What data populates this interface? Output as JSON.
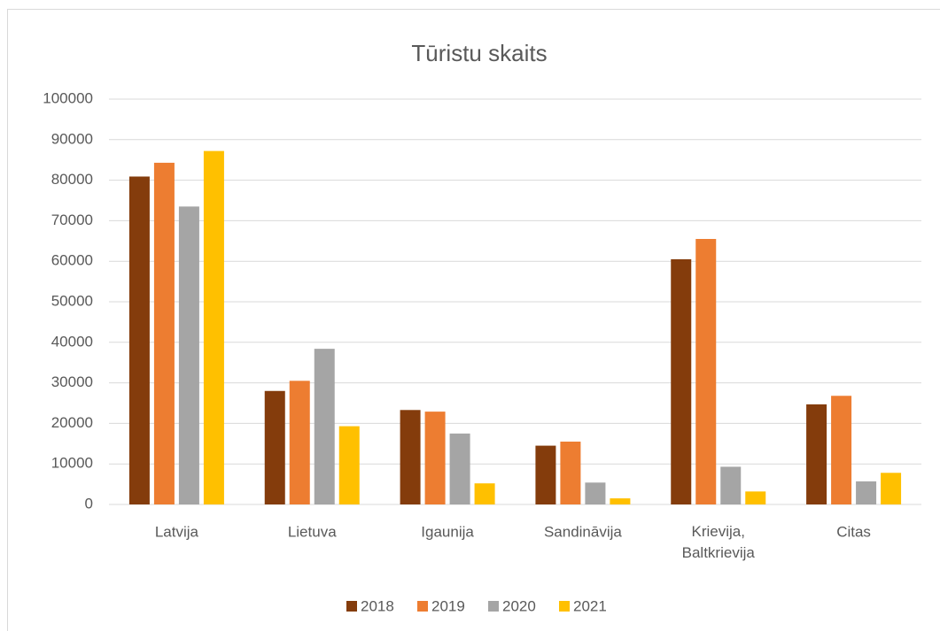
{
  "chart_data": {
    "type": "bar",
    "title": "Tūristu skaits",
    "categories": [
      "Latvija",
      "Lietuva",
      "Igaunija",
      "Sandināvija",
      "Krievija, Baltkrievija",
      "Citas"
    ],
    "series": [
      {
        "name": "2018",
        "color": "#843c0c",
        "values": [
          80900,
          28000,
          23300,
          14500,
          60500,
          24700
        ]
      },
      {
        "name": "2019",
        "color": "#ed7d31",
        "values": [
          84300,
          30500,
          22900,
          15500,
          65500,
          26800
        ]
      },
      {
        "name": "2020",
        "color": "#a5a5a5",
        "values": [
          73500,
          38400,
          17500,
          5400,
          9300,
          5700
        ]
      },
      {
        "name": "2021",
        "color": "#ffc000",
        "values": [
          87200,
          19300,
          5200,
          1500,
          3200,
          7800
        ]
      }
    ],
    "ylim": [
      0,
      100000
    ],
    "yticks": [
      0,
      10000,
      20000,
      30000,
      40000,
      50000,
      60000,
      70000,
      80000,
      90000,
      100000
    ],
    "grid": true,
    "legend": "bottom"
  }
}
